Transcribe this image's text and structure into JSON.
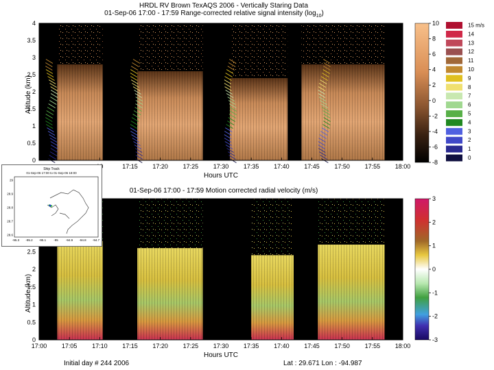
{
  "header": {
    "title": "HRDL RV Brown TexAQS 2006 - Vertically Staring Data",
    "top_subtitle": "01-Sep-06 17:00 - 17:59 Range-corrected relative signal intensity (log",
    "top_subtitle_sub": "10",
    "top_subtitle_close": ")",
    "bottom_subtitle": "01-Sep-06 17:00 - 17:59 Motion corrected radial velocity (m/s)"
  },
  "footer": {
    "initial_day": "Initial day # 244  2006",
    "latlon": "Lat :  29.671  Lon :  -94.987"
  },
  "ship_track": {
    "title": "Ship Track",
    "subtitle": "01-Sep-06 17:00 to 01-Sep-06 18:00",
    "y_ticks": [
      "29",
      "28.9",
      "28.8",
      "28.7",
      "28.6"
    ],
    "x_ticks": [
      "-95.3",
      "-95.2",
      "-95.1",
      "-95",
      "-94.9",
      "-94.8",
      "-94.7"
    ]
  },
  "colors": {
    "signal_low": "#000000",
    "signal_high": "#f5b57a",
    "velocity_neg": "#1a0a7a",
    "velocity_zero": "#ffffff",
    "velocity_pos": "#c8235a"
  },
  "chart_data": [
    {
      "type": "heatmap",
      "name": "signal-intensity",
      "xlabel": "Hours UTC",
      "ylabel": "Altitude (km)",
      "xlim": [
        "17:00",
        "18:00"
      ],
      "ylim": [
        0,
        4
      ],
      "x_ticks": [
        "10",
        "17:15",
        "17:20",
        "17:25",
        "17:30",
        "17:35",
        "17:40",
        "17:45",
        "17:50",
        "17:55",
        "18:00"
      ],
      "x_tick_times": [
        10,
        15,
        20,
        25,
        30,
        35,
        40,
        45,
        50,
        55,
        60
      ],
      "y_ticks": [
        "0",
        "0.5",
        "1",
        "1.5",
        "2",
        "2.5",
        "3",
        "3.5",
        "4"
      ],
      "y_tick_values": [
        0,
        0.5,
        1,
        1.5,
        2,
        2.5,
        3,
        3.5,
        4
      ],
      "colorbar": {
        "ticks": [
          "10",
          "8",
          "6",
          "4",
          "2",
          "0",
          "-2",
          "-4",
          "-6",
          "-8"
        ],
        "values": [
          10,
          8,
          6,
          4,
          2,
          0,
          -2,
          -4,
          -6,
          -8
        ],
        "range": [
          -8,
          10
        ]
      },
      "data_segments": [
        {
          "start": 3.0,
          "end": 10.5,
          "top_km": 2.8
        },
        {
          "start": 16.2,
          "end": 27.0,
          "top_km": 2.6
        },
        {
          "start": 31.5,
          "end": 41.0,
          "top_km": 2.4
        },
        {
          "start": 43.3,
          "end": 57.0,
          "top_km": 2.8
        }
      ],
      "wind_legend": {
        "unit": "m/s",
        "labels": [
          "15 m/s",
          "14",
          "13",
          "12",
          "11",
          "10",
          "9",
          "8",
          "7",
          "6",
          "5",
          "4",
          "3",
          "2",
          "1",
          "0"
        ],
        "values": [
          15,
          14,
          13,
          12,
          11,
          10,
          9,
          8,
          7,
          6,
          5,
          4,
          3,
          2,
          1,
          0
        ],
        "colors": [
          "#b01030",
          "#d02848",
          "#c0485a",
          "#9a5050",
          "#a06838",
          "#c08830",
          "#e0c020",
          "#f0e070",
          "#c8e8b0",
          "#a0d890",
          "#58b048",
          "#208820",
          "#5060e0",
          "#4048c8",
          "#2a2a90",
          "#101040"
        ]
      }
    },
    {
      "type": "heatmap",
      "name": "radial-velocity",
      "xlabel": "Hours UTC",
      "ylabel": "Altitude (km)",
      "xlim": [
        "17:00",
        "18:00"
      ],
      "ylim": [
        0,
        4
      ],
      "x_ticks": [
        "17:00",
        "17:05",
        "17:10",
        "17:15",
        "17:20",
        "17:25",
        "17:30",
        "17:35",
        "17:40",
        "17:45",
        "17:50",
        "17:55",
        "18:00"
      ],
      "x_tick_times": [
        0,
        5,
        10,
        15,
        20,
        25,
        30,
        35,
        40,
        45,
        50,
        55,
        60
      ],
      "y_ticks": [
        "0",
        "0.5",
        "1",
        "1.5",
        "2",
        "2.5"
      ],
      "y_tick_values": [
        0,
        0.5,
        1,
        1.5,
        2,
        2.5
      ],
      "colorbar": {
        "ticks": [
          "3",
          "2",
          "1",
          "0",
          "-1",
          "-2",
          "-3"
        ],
        "values": [
          3,
          2,
          1,
          0,
          -1,
          -2,
          -3
        ],
        "range": [
          -3,
          3
        ]
      },
      "data_segments": [
        {
          "start": 3.0,
          "end": 10.5,
          "top_km": 2.8
        },
        {
          "start": 16.2,
          "end": 27.0,
          "top_km": 2.6
        },
        {
          "start": 35.0,
          "end": 42.0,
          "top_km": 2.4
        },
        {
          "start": 46.0,
          "end": 57.0,
          "top_km": 2.7
        }
      ]
    }
  ]
}
